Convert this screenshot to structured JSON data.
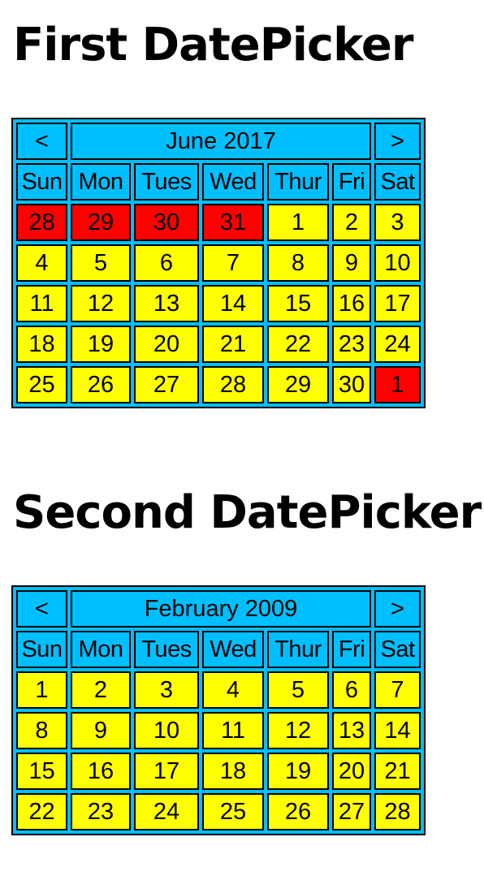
{
  "pickers": [
    {
      "heading": "First DatePicker",
      "prev_label": "<",
      "next_label": ">",
      "month_title": "June 2017",
      "weekday_labels": [
        "Sun",
        "Mon",
        "Tues",
        "Wed",
        "Thur",
        "Fri",
        "Sat"
      ],
      "weeks": [
        [
          {
            "day": "28",
            "other_month": true
          },
          {
            "day": "29",
            "other_month": true
          },
          {
            "day": "30",
            "other_month": true
          },
          {
            "day": "31",
            "other_month": true
          },
          {
            "day": "1"
          },
          {
            "day": "2"
          },
          {
            "day": "3"
          }
        ],
        [
          {
            "day": "4"
          },
          {
            "day": "5"
          },
          {
            "day": "6"
          },
          {
            "day": "7"
          },
          {
            "day": "8"
          },
          {
            "day": "9"
          },
          {
            "day": "10"
          }
        ],
        [
          {
            "day": "11"
          },
          {
            "day": "12"
          },
          {
            "day": "13"
          },
          {
            "day": "14"
          },
          {
            "day": "15"
          },
          {
            "day": "16"
          },
          {
            "day": "17"
          }
        ],
        [
          {
            "day": "18"
          },
          {
            "day": "19"
          },
          {
            "day": "20"
          },
          {
            "day": "21"
          },
          {
            "day": "22"
          },
          {
            "day": "23"
          },
          {
            "day": "24"
          }
        ],
        [
          {
            "day": "25"
          },
          {
            "day": "26"
          },
          {
            "day": "27"
          },
          {
            "day": "28"
          },
          {
            "day": "29"
          },
          {
            "day": "30"
          },
          {
            "day": "1",
            "other_month": true
          }
        ]
      ]
    },
    {
      "heading": "Second DatePicker",
      "prev_label": "<",
      "next_label": ">",
      "month_title": "February 2009",
      "weekday_labels": [
        "Sun",
        "Mon",
        "Tues",
        "Wed",
        "Thur",
        "Fri",
        "Sat"
      ],
      "weeks": [
        [
          {
            "day": "1"
          },
          {
            "day": "2"
          },
          {
            "day": "3"
          },
          {
            "day": "4"
          },
          {
            "day": "5"
          },
          {
            "day": "6"
          },
          {
            "day": "7"
          }
        ],
        [
          {
            "day": "8"
          },
          {
            "day": "9"
          },
          {
            "day": "10"
          },
          {
            "day": "11"
          },
          {
            "day": "12"
          },
          {
            "day": "13"
          },
          {
            "day": "14"
          }
        ],
        [
          {
            "day": "15"
          },
          {
            "day": "16"
          },
          {
            "day": "17"
          },
          {
            "day": "18"
          },
          {
            "day": "19"
          },
          {
            "day": "20"
          },
          {
            "day": "21"
          }
        ],
        [
          {
            "day": "22"
          },
          {
            "day": "23"
          },
          {
            "day": "24"
          },
          {
            "day": "25"
          },
          {
            "day": "26"
          },
          {
            "day": "27"
          },
          {
            "day": "28"
          }
        ]
      ]
    }
  ],
  "colors": {
    "table_background": "#00BFFF",
    "current_month_day": "#FFFF00",
    "other_month_day": "#FF0000",
    "border": "#000000"
  }
}
